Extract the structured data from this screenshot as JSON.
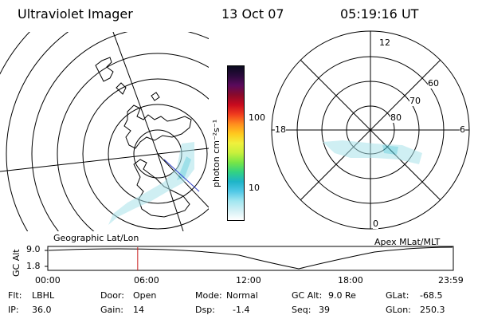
{
  "header": {
    "instrument": "Ultraviolet Imager",
    "date": "13 Oct 07",
    "time": "05:19:16 UT"
  },
  "colorbar": {
    "unit_label": "photon cm⁻²s⁻¹",
    "ticks": [
      "100",
      "10"
    ],
    "colors": [
      "#0a0a1e",
      "#2a0a3c",
      "#5a0a5c",
      "#8a0a2a",
      "#c80a1e",
      "#f03c1e",
      "#ff8c1e",
      "#ffc81e",
      "#f0f03c",
      "#c8f03c",
      "#78e646",
      "#32d282",
      "#1eb4c8",
      "#50c8e6",
      "#a0e6f0",
      "#d2f0f5",
      "#ffffff"
    ]
  },
  "left_map": {
    "caption": "Geographic Lat/Lon"
  },
  "right_map": {
    "caption": "Apex MLat/MLT",
    "mlt_labels": {
      "top": "12",
      "left": "18",
      "right": "6",
      "bottom": "0"
    },
    "lat_labels": [
      "60",
      "70",
      "80"
    ]
  },
  "timeline": {
    "ylabel": "GC Alt",
    "y_ticks": [
      "9.0",
      "1.8"
    ],
    "x_ticks": [
      "00:00",
      "06:00",
      "12:00",
      "18:00",
      "23:59"
    ],
    "current_time_hours": 5.32
  },
  "status": {
    "flt_label": "Flt:",
    "flt_value": "LBHL",
    "ip_label": "IP:",
    "ip_value": "36.0",
    "door_label": "Door:",
    "door_value": "Open",
    "gain_label": "Gain:",
    "gain_value": "14",
    "mode_label": "Mode:",
    "mode_value": "Normal",
    "dsp_label": "Dsp:",
    "dsp_value": "-1.4",
    "gcalt_label": "GC Alt:",
    "gcalt_value": "9.0 Re",
    "seq_label": "Seq:",
    "seq_value": "39",
    "glat_label": "GLat:",
    "glat_value": "-68.5",
    "glon_label": "GLon:",
    "glon_value": "250.3"
  }
}
